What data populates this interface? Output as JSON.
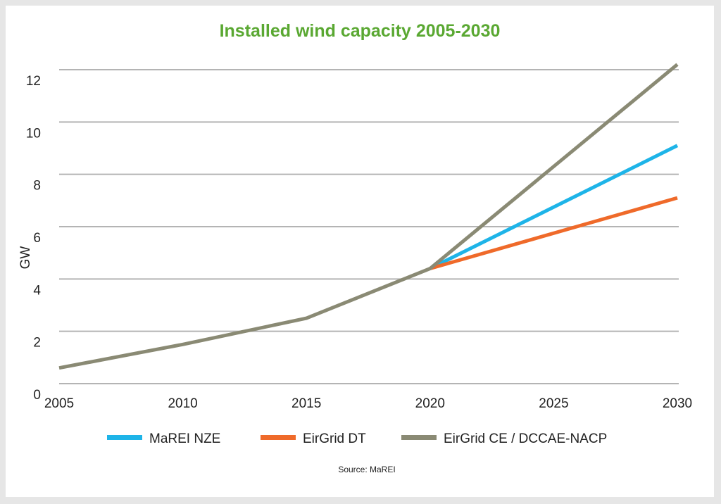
{
  "chart_data": {
    "type": "line",
    "title": "Installed wind capacity 2005-2030",
    "ylabel": "GW",
    "xlabel": "",
    "x_ticks": [
      "2005",
      "2010",
      "2015",
      "2020",
      "2025",
      "2030"
    ],
    "y_ticks": [
      "0",
      "2",
      "4",
      "6",
      "8",
      "10",
      "12"
    ],
    "xlim": [
      2005,
      2030
    ],
    "ylim": [
      0,
      12
    ],
    "grid": "horizontal",
    "legend_position": "bottom",
    "source": "Source: MaREI",
    "title_color": "#5aa832",
    "series": [
      {
        "name": "MaREI NZE",
        "color": "#1eb4e8",
        "points": [
          [
            2020,
            4.4
          ],
          [
            2030,
            9.1
          ]
        ]
      },
      {
        "name": "EirGrid DT",
        "color": "#ef6a2a",
        "points": [
          [
            2020,
            4.4
          ],
          [
            2030,
            7.1
          ]
        ]
      },
      {
        "name": "EirGrid CE / DCCAE-NACP",
        "color": "#8a8a74",
        "points": [
          [
            2005,
            0.6
          ],
          [
            2010,
            1.5
          ],
          [
            2015,
            2.5
          ],
          [
            2020,
            4.4
          ],
          [
            2025,
            8.3
          ],
          [
            2030,
            12.2
          ]
        ]
      }
    ]
  }
}
